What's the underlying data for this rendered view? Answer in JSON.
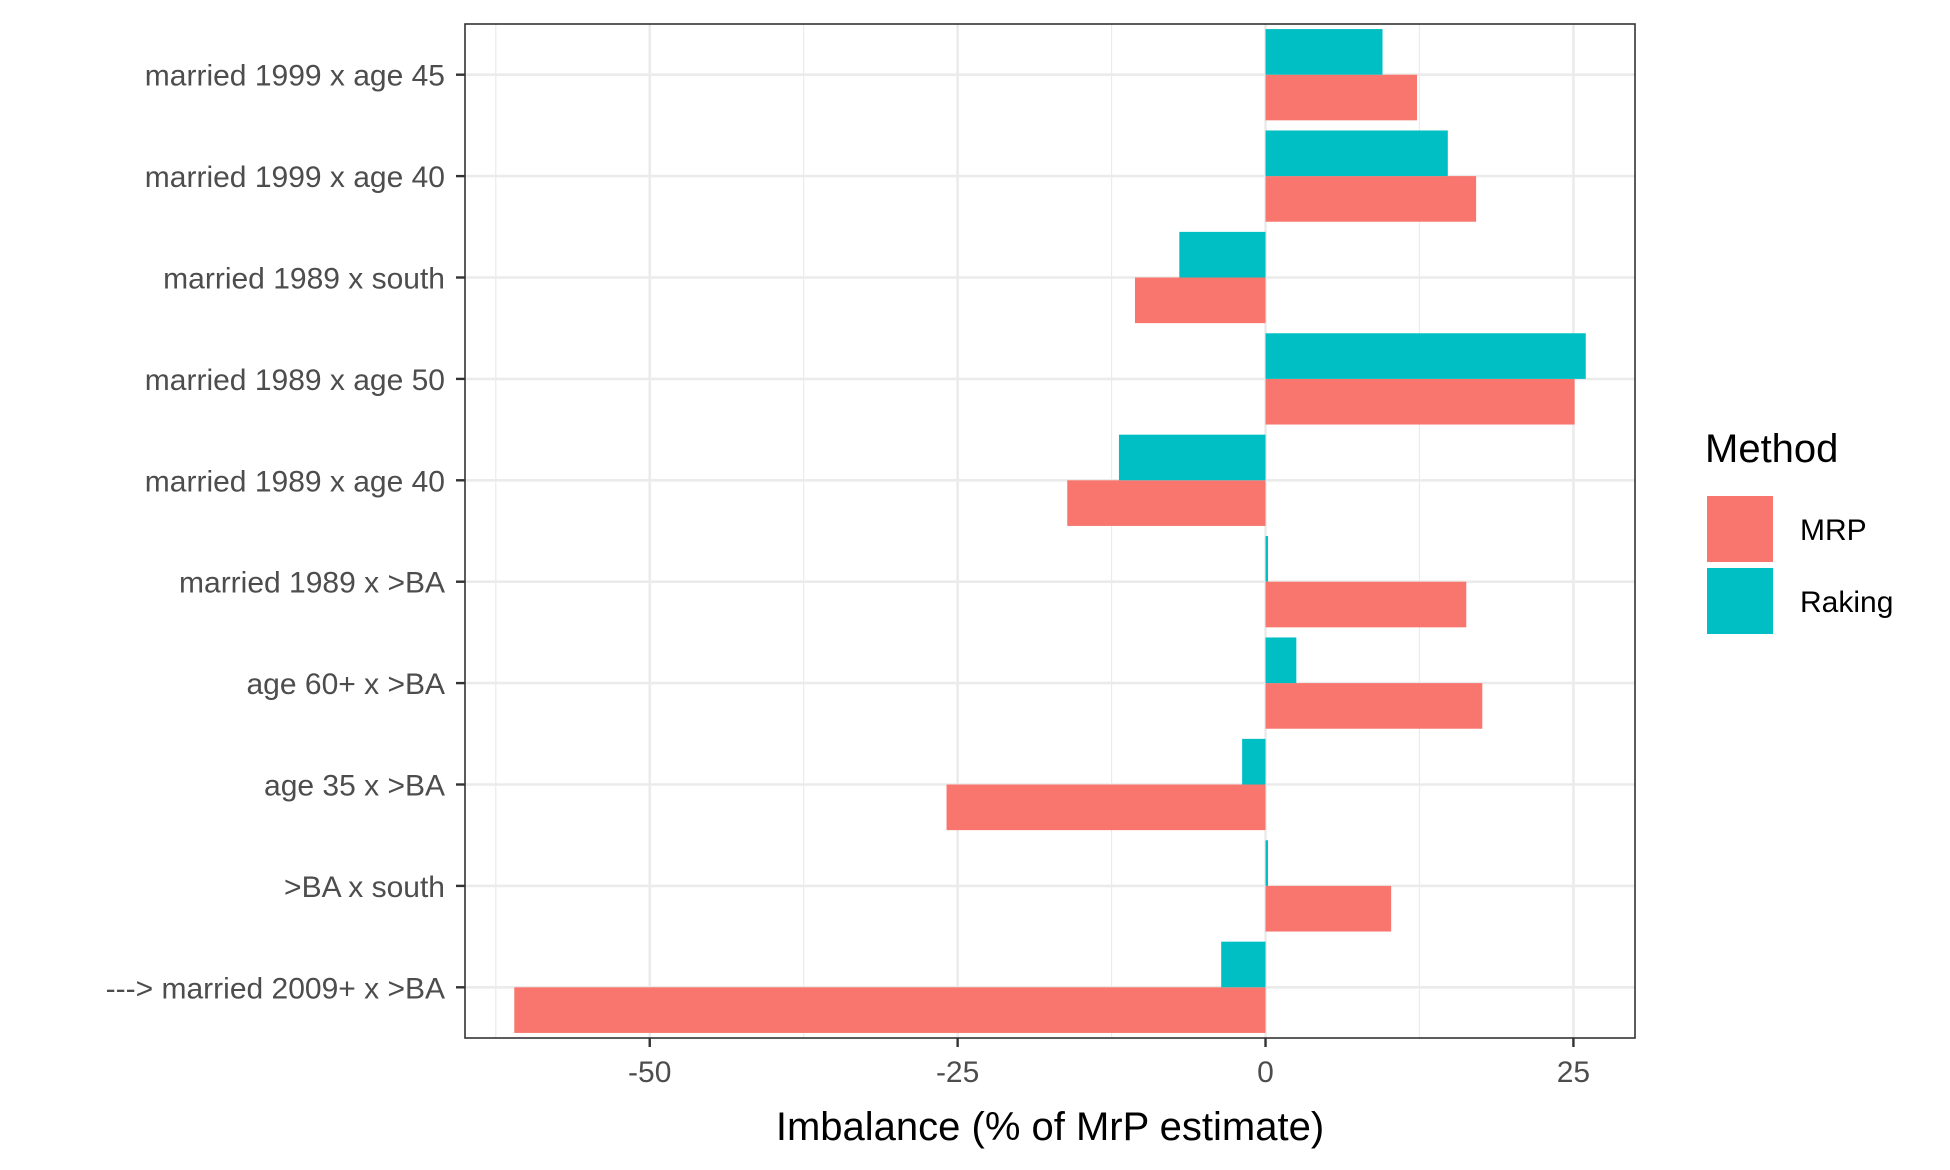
{
  "chart_data": {
    "type": "bar",
    "orientation": "horizontal",
    "categories": [
      "married 1999 x age 45",
      "married 1999 x age 40",
      "married 1989 x south",
      "married 1989 x age 50",
      "married 1989 x age 40",
      "married 1989 x >BA",
      "age 60+ x >BA",
      "age 35 x >BA",
      ">BA x south",
      "---> married 2009+ x >BA"
    ],
    "series": [
      {
        "name": "MRP",
        "color": "#F8766D",
        "values": [
          12.3,
          17.1,
          -10.6,
          25.1,
          -16.1,
          16.3,
          17.6,
          -25.9,
          10.2,
          -61.0
        ]
      },
      {
        "name": "Raking",
        "color": "#00BFC4",
        "values": [
          9.5,
          14.8,
          -7.0,
          26.0,
          -11.9,
          0.2,
          2.5,
          -1.9,
          0.2,
          -3.6
        ]
      }
    ],
    "xlabel": "Imbalance (% of MrP estimate)",
    "ylabel": "",
    "xlim": [
      -65,
      30
    ],
    "xticks": [
      -50,
      -25,
      0,
      25
    ],
    "xtick_labels": [
      "-50",
      "-25",
      "0",
      "25"
    ],
    "grid": true,
    "legend": {
      "title": "Method",
      "position": "right",
      "entries": [
        "MRP",
        "Raking"
      ]
    }
  }
}
